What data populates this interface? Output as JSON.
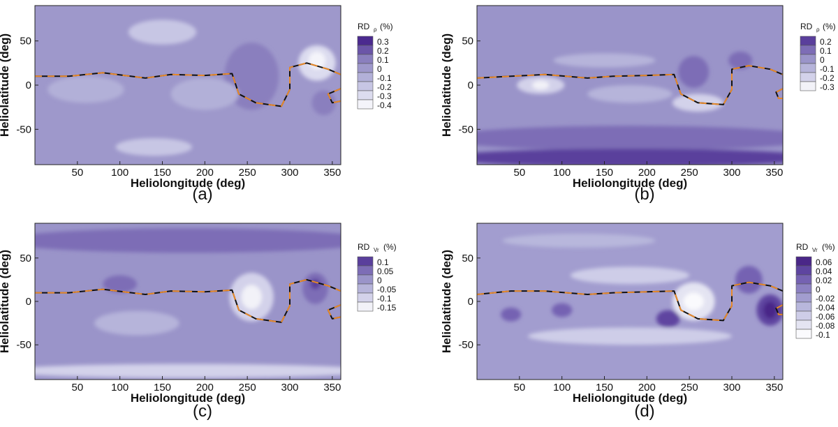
{
  "chart_data": [
    {
      "type": "heatmap",
      "panel_label": "(a)",
      "xlabel": "Heliolongitude (deg)",
      "ylabel": "Heliolatitude (deg)",
      "xlim": [
        0,
        360
      ],
      "ylim": [
        -90,
        90
      ],
      "xticks": [
        "50",
        "100",
        "150",
        "200",
        "250",
        "300",
        "350"
      ],
      "yticks": [
        "50",
        "0",
        "-50"
      ],
      "legend_title": "RD",
      "legend_subscript": "ρ",
      "legend_unit": "(%)",
      "legend_levels": [
        "0.3",
        "0.2",
        "0.1",
        "0",
        "-0.1",
        "-0.2",
        "-0.3",
        "-0.4"
      ],
      "legend_colors": [
        "#4b2a8f",
        "#6b55a8",
        "#8a7fbe",
        "#9e98cb",
        "#b2b0d8",
        "#c7c6e4",
        "#dcdcef",
        "#f4f4fa"
      ],
      "background_level": "0",
      "blobs": [
        {
          "x": 252,
          "y": 0,
          "rx": 10,
          "ry": 14,
          "color": "#4b2a8f"
        },
        {
          "x": 255,
          "y": 5,
          "rx": 22,
          "ry": 28,
          "color": "#6b55a8"
        },
        {
          "x": 255,
          "y": 10,
          "rx": 32,
          "ry": 38,
          "color": "#8a7fbe"
        },
        {
          "x": 332,
          "y": 25,
          "rx": 22,
          "ry": 20,
          "color": "#dcdcef"
        },
        {
          "x": 332,
          "y": 28,
          "rx": 10,
          "ry": 10,
          "color": "#f4f4fa"
        },
        {
          "x": 340,
          "y": -20,
          "rx": 14,
          "ry": 14,
          "color": "#8a7fbe"
        },
        {
          "x": 150,
          "y": 60,
          "rx": 40,
          "ry": 14,
          "color": "#c7c6e4"
        },
        {
          "x": 140,
          "y": -70,
          "rx": 45,
          "ry": 10,
          "color": "#c7c6e4"
        },
        {
          "x": 60,
          "y": -5,
          "rx": 45,
          "ry": 15,
          "color": "#b2b0d8"
        },
        {
          "x": 200,
          "y": -10,
          "rx": 40,
          "ry": 18,
          "color": "#b2b0d8"
        }
      ],
      "hcs_line": [
        [
          0,
          10
        ],
        [
          40,
          10
        ],
        [
          80,
          14
        ],
        [
          130,
          8
        ],
        [
          160,
          12
        ],
        [
          200,
          11
        ],
        [
          232,
          13
        ],
        [
          240,
          -10
        ],
        [
          260,
          -20
        ],
        [
          290,
          -24
        ],
        [
          300,
          -5
        ],
        [
          300,
          20
        ],
        [
          320,
          25
        ],
        [
          345,
          18
        ],
        [
          360,
          12
        ]
      ],
      "hcs_line2": [
        [
          360,
          -4
        ],
        [
          345,
          -10
        ],
        [
          350,
          -20
        ],
        [
          360,
          -18
        ]
      ]
    },
    {
      "type": "heatmap",
      "panel_label": "(b)",
      "xlabel": "Heliolongitude (deg)",
      "ylabel": "Heliolatitude (deg)",
      "xlim": [
        0,
        360
      ],
      "ylim": [
        -90,
        90
      ],
      "xticks": [
        "50",
        "100",
        "150",
        "200",
        "250",
        "300",
        "350"
      ],
      "yticks": [
        "50",
        "0",
        "-50"
      ],
      "legend_title": "RD",
      "legend_subscript": "ρ",
      "legend_unit": "(%)",
      "legend_levels": [
        "0.2",
        "0.1",
        "0",
        "-0.1",
        "-0.2",
        "-0.3"
      ],
      "legend_colors": [
        "#5a3f9c",
        "#7d6db6",
        "#9a94c9",
        "#b6b4da",
        "#d3d2ea",
        "#f2f2f8"
      ],
      "background_level": "0",
      "blobs": [
        {
          "x": 180,
          "y": -60,
          "rx": 220,
          "ry": 14,
          "color": "#7d6db6"
        },
        {
          "x": 180,
          "y": -82,
          "rx": 220,
          "ry": 10,
          "color": "#5a3f9c"
        },
        {
          "x": 255,
          "y": 15,
          "rx": 18,
          "ry": 18,
          "color": "#7d6db6"
        },
        {
          "x": 310,
          "y": 28,
          "rx": 14,
          "ry": 10,
          "color": "#7d6db6"
        },
        {
          "x": 75,
          "y": 0,
          "rx": 28,
          "ry": 10,
          "color": "#d3d2ea"
        },
        {
          "x": 75,
          "y": 0,
          "rx": 10,
          "ry": 5,
          "color": "#f2f2f8"
        },
        {
          "x": 260,
          "y": -20,
          "rx": 30,
          "ry": 10,
          "color": "#d3d2ea"
        },
        {
          "x": 150,
          "y": 28,
          "rx": 60,
          "ry": 8,
          "color": "#b6b4da"
        },
        {
          "x": 180,
          "y": -10,
          "rx": 50,
          "ry": 10,
          "color": "#b6b4da"
        }
      ],
      "hcs_line": [
        [
          0,
          8
        ],
        [
          40,
          10
        ],
        [
          80,
          12
        ],
        [
          130,
          8
        ],
        [
          160,
          10
        ],
        [
          200,
          11
        ],
        [
          232,
          12
        ],
        [
          240,
          -10
        ],
        [
          260,
          -20
        ],
        [
          290,
          -22
        ],
        [
          300,
          -5
        ],
        [
          300,
          18
        ],
        [
          320,
          22
        ],
        [
          345,
          18
        ],
        [
          360,
          12
        ]
      ],
      "hcs_line2": [
        [
          360,
          -4
        ],
        [
          352,
          -8
        ],
        [
          355,
          -15
        ],
        [
          360,
          -15
        ]
      ]
    },
    {
      "type": "heatmap",
      "panel_label": "(c)",
      "xlabel": "Heliolongitude (deg)",
      "ylabel": "Heliolatitude (deg)",
      "xlim": [
        0,
        360
      ],
      "ylim": [
        -90,
        90
      ],
      "xticks": [
        "50",
        "100",
        "150",
        "200",
        "250",
        "300",
        "350"
      ],
      "yticks": [
        "50",
        "0",
        "-50"
      ],
      "legend_title": "RD",
      "legend_subscript": "Vr",
      "legend_unit": "(%)",
      "legend_levels": [
        "0.1",
        "0.05",
        "0",
        "-0.05",
        "-0.1",
        "-0.15"
      ],
      "legend_colors": [
        "#5a3f9c",
        "#7d6db6",
        "#9a94c9",
        "#b6b4da",
        "#d3d2ea",
        "#f2f2f8"
      ],
      "background_level": "0",
      "blobs": [
        {
          "x": 180,
          "y": 70,
          "rx": 220,
          "ry": 14,
          "color": "#7d6db6"
        },
        {
          "x": 255,
          "y": 5,
          "rx": 26,
          "ry": 28,
          "color": "#d3d2ea"
        },
        {
          "x": 255,
          "y": 5,
          "rx": 12,
          "ry": 14,
          "color": "#f2f2f8"
        },
        {
          "x": 330,
          "y": 15,
          "rx": 15,
          "ry": 18,
          "color": "#7d6db6"
        },
        {
          "x": 330,
          "y": 20,
          "rx": 6,
          "ry": 6,
          "color": "#5a3f9c"
        },
        {
          "x": 100,
          "y": 20,
          "rx": 20,
          "ry": 10,
          "color": "#7d6db6"
        },
        {
          "x": 180,
          "y": -80,
          "rx": 220,
          "ry": 8,
          "color": "#d3d2ea"
        },
        {
          "x": 120,
          "y": -25,
          "rx": 50,
          "ry": 14,
          "color": "#b6b4da"
        }
      ],
      "hcs_line": [
        [
          0,
          10
        ],
        [
          40,
          10
        ],
        [
          80,
          14
        ],
        [
          130,
          8
        ],
        [
          160,
          12
        ],
        [
          200,
          11
        ],
        [
          232,
          13
        ],
        [
          240,
          -10
        ],
        [
          260,
          -20
        ],
        [
          290,
          -24
        ],
        [
          300,
          -5
        ],
        [
          300,
          20
        ],
        [
          320,
          25
        ],
        [
          345,
          18
        ],
        [
          360,
          12
        ]
      ],
      "hcs_line2": [
        [
          360,
          -4
        ],
        [
          345,
          -10
        ],
        [
          350,
          -20
        ],
        [
          360,
          -18
        ]
      ]
    },
    {
      "type": "heatmap",
      "panel_label": "(d)",
      "xlabel": "Heliolongitude (deg)",
      "ylabel": "Heliolatitude (deg)",
      "xlim": [
        0,
        360
      ],
      "ylim": [
        -90,
        90
      ],
      "xticks": [
        "50",
        "100",
        "150",
        "200",
        "250",
        "300",
        "350"
      ],
      "yticks": [
        "50",
        "0",
        "-50"
      ],
      "legend_title": "RD",
      "legend_subscript": "Vr",
      "legend_unit": "(%)",
      "legend_levels": [
        "0.06",
        "0.04",
        "0.02",
        "0",
        "-0.02",
        "-0.04",
        "-0.06",
        "-0.08",
        "-0.1"
      ],
      "legend_colors": [
        "#4a2788",
        "#5e45a0",
        "#7562b2",
        "#8c81c2",
        "#a29dcf",
        "#b8b7dc",
        "#cecde8",
        "#e4e4f2",
        "#fafafd"
      ],
      "background_level": "-0.02",
      "blobs": [
        {
          "x": 255,
          "y": 0,
          "rx": 25,
          "ry": 22,
          "color": "#e4e4f2"
        },
        {
          "x": 255,
          "y": 0,
          "rx": 12,
          "ry": 10,
          "color": "#fafafd"
        },
        {
          "x": 345,
          "y": -10,
          "rx": 16,
          "ry": 18,
          "color": "#5e45a0"
        },
        {
          "x": 345,
          "y": -10,
          "rx": 8,
          "ry": 10,
          "color": "#4a2788"
        },
        {
          "x": 320,
          "y": 25,
          "rx": 16,
          "ry": 16,
          "color": "#7562b2"
        },
        {
          "x": 225,
          "y": -20,
          "rx": 14,
          "ry": 10,
          "color": "#5e45a0"
        },
        {
          "x": 100,
          "y": -10,
          "rx": 12,
          "ry": 8,
          "color": "#7562b2"
        },
        {
          "x": 40,
          "y": -15,
          "rx": 12,
          "ry": 8,
          "color": "#7562b2"
        },
        {
          "x": 180,
          "y": 30,
          "rx": 70,
          "ry": 10,
          "color": "#cecde8"
        },
        {
          "x": 180,
          "y": -40,
          "rx": 120,
          "ry": 10,
          "color": "#cecde8"
        },
        {
          "x": 120,
          "y": 70,
          "rx": 90,
          "ry": 8,
          "color": "#b8b7dc"
        }
      ],
      "hcs_line": [
        [
          0,
          8
        ],
        [
          40,
          12
        ],
        [
          80,
          12
        ],
        [
          130,
          8
        ],
        [
          160,
          10
        ],
        [
          200,
          11
        ],
        [
          232,
          12
        ],
        [
          240,
          -10
        ],
        [
          260,
          -20
        ],
        [
          290,
          -22
        ],
        [
          300,
          -5
        ],
        [
          300,
          18
        ],
        [
          320,
          22
        ],
        [
          345,
          18
        ],
        [
          360,
          12
        ]
      ],
      "hcs_line2": [
        [
          360,
          -4
        ],
        [
          352,
          -8
        ],
        [
          355,
          -15
        ],
        [
          360,
          -15
        ]
      ]
    }
  ]
}
